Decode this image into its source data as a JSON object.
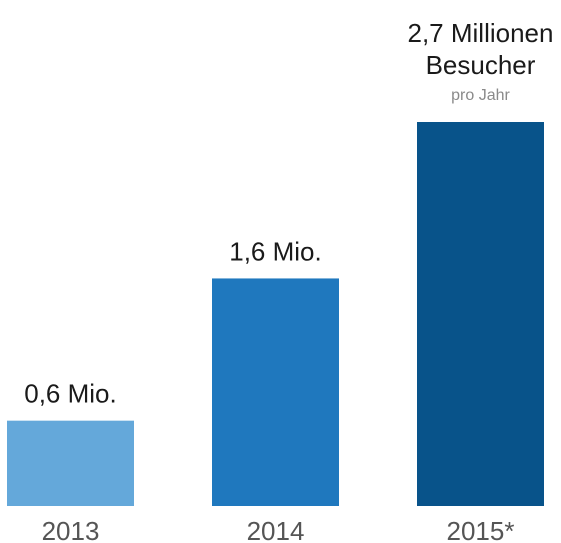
{
  "chart_data": {
    "type": "bar",
    "categories": [
      "2013",
      "2014",
      "2015*"
    ],
    "values": [
      0.6,
      1.6,
      2.7
    ],
    "value_labels": [
      [
        "0,6 Mio."
      ],
      [
        "1,6 Mio."
      ],
      [
        "2,7 Millionen",
        "Besucher"
      ]
    ],
    "sub_labels": [
      "",
      "",
      "pro Jahr"
    ],
    "colors": [
      "#64a8da",
      "#1f78be",
      "#08538a"
    ],
    "ylim": [
      0,
      2.7
    ],
    "grid": false,
    "title": "",
    "xlabel": "",
    "ylabel": ""
  }
}
